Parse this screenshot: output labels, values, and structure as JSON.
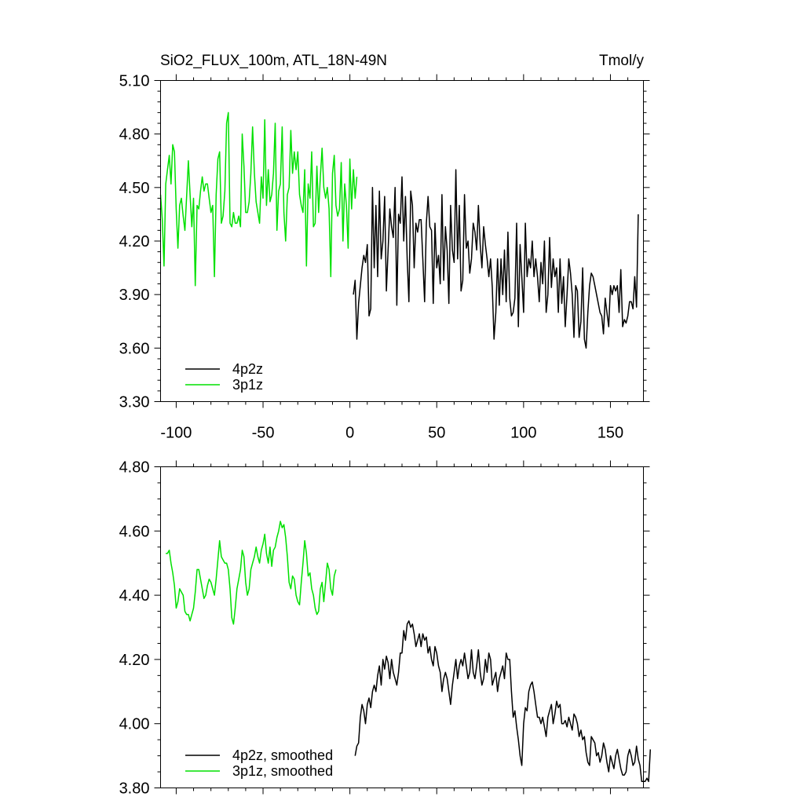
{
  "colors": {
    "run_4p2z": "#000000",
    "run_3p1z": "#00e000"
  },
  "chart_data": [
    {
      "type": "line",
      "title": "SiO2_FLUX_100m, ATL_18N-49N",
      "units": "Tmol/y",
      "xlim": [
        -109,
        169
      ],
      "ylim": [
        3.3,
        5.1
      ],
      "xticks": [
        -100,
        -50,
        0,
        50,
        100,
        150
      ],
      "xtick_labels": [
        "-100",
        "-50",
        "0",
        "50",
        "100",
        "150"
      ],
      "yticks": [
        3.3,
        3.6,
        3.9,
        4.2,
        4.5,
        4.8,
        5.1
      ],
      "ytick_labels": [
        "3.30",
        "3.60",
        "3.90",
        "4.20",
        "4.50",
        "4.80",
        "5.10"
      ],
      "legend_position": "lower-left",
      "series": [
        {
          "name": "4p2z",
          "color": "#000000",
          "x_start": 2,
          "x_step": 1,
          "values": [
            3.9,
            3.98,
            3.65,
            3.85,
            3.95,
            4.05,
            4.12,
            4.08,
            4.18,
            3.78,
            3.82,
            4.5,
            4.05,
            4.4,
            4.0,
            4.48,
            4.1,
            4.2,
            4.45,
            3.92,
            4.15,
            4.38,
            4.28,
            4.22,
            4.5,
            3.84,
            4.35,
            4.3,
            4.56,
            4.2,
            4.45,
            4.1,
            3.86,
            4.48,
            4.4,
            4.05,
            4.3,
            4.25,
            4.32,
            4.32,
            4.1,
            3.86,
            4.3,
            4.45,
            4.28,
            4.26,
            3.85,
            4.3,
            4.05,
            4.12,
            3.96,
            4.46,
            3.98,
            4.28,
            4.15,
            3.85,
            4.4,
            4.15,
            4.08,
            4.6,
            4.1,
            4.4,
            3.92,
            3.98,
            4.46,
            4.16,
            4.2,
            4.02,
            4.1,
            4.3,
            4.25,
            4.15,
            4.4,
            4.18,
            4.05,
            4.28,
            4.18,
            4.1,
            4.0,
            4.1,
            3.94,
            3.65,
            3.8,
            4.1,
            3.84,
            4.1,
            3.9,
            4.15,
            3.86,
            4.25,
            3.88,
            3.78,
            3.8,
            3.88,
            4.3,
            3.72,
            4.18,
            4.0,
            3.8,
            4.3,
            4.0,
            4.1,
            4.05,
            4.2,
            4.0,
            4.1,
            4.0,
            3.86,
            4.08,
            3.96,
            4.2,
            3.8,
            3.9,
            4.22,
            3.94,
            4.1,
            4.0,
            4.05,
            3.8,
            4.1,
            3.85,
            4.0,
            3.72,
            3.9,
            4.1,
            4.02,
            3.9,
            3.66,
            3.95,
            3.92,
            3.66,
            3.75,
            4.05,
            3.65,
            3.6,
            3.8,
            3.95,
            4.02,
            4.0,
            3.95,
            3.9,
            3.85,
            3.8,
            3.78,
            3.68,
            3.88,
            3.8,
            3.72,
            3.95,
            3.9,
            3.95,
            3.92,
            3.95,
            3.8,
            4.04,
            3.72,
            3.76,
            3.74,
            3.78,
            3.86,
            3.86,
            3.82,
            4.0,
            3.83,
            4.35
          ]
        },
        {
          "name": "3p1z",
          "color": "#00e000",
          "x_start": -109,
          "x_step": 1,
          "values": [
            4.46,
            4.32,
            4.06,
            4.52,
            4.6,
            4.68,
            4.52,
            4.74,
            4.7,
            4.38,
            4.16,
            4.4,
            4.44,
            4.34,
            4.26,
            4.45,
            4.65,
            4.46,
            4.28,
            4.44,
            3.95,
            4.4,
            4.38,
            4.48,
            4.56,
            4.48,
            4.52,
            4.52,
            4.44,
            4.36,
            4.4,
            4.0,
            4.46,
            4.66,
            4.7,
            4.3,
            4.34,
            4.48,
            4.86,
            4.92,
            4.3,
            4.28,
            4.36,
            4.3,
            4.3,
            4.34,
            4.28,
            4.8,
            4.62,
            4.36,
            4.36,
            4.42,
            4.58,
            4.84,
            4.58,
            4.42,
            4.36,
            4.3,
            4.56,
            4.44,
            4.88,
            4.4,
            4.6,
            4.42,
            4.46,
            4.58,
            4.86,
            4.26,
            4.48,
            4.52,
            4.84,
            4.36,
            4.2,
            4.46,
            4.5,
            4.82,
            4.58,
            4.7,
            4.6,
            4.7,
            4.46,
            4.4,
            4.36,
            4.6,
            4.06,
            4.52,
            4.44,
            4.7,
            4.28,
            4.3,
            4.62,
            4.36,
            4.56,
            4.72,
            4.5,
            4.44,
            4.5,
            4.38,
            4.0,
            4.58,
            4.68,
            4.4,
            4.34,
            4.38,
            4.64,
            4.2,
            4.52,
            4.4,
            4.16,
            4.66,
            4.38,
            4.6,
            4.44,
            4.56
          ]
        }
      ]
    },
    {
      "type": "line",
      "title": "",
      "xlim": [
        -109,
        169
      ],
      "ylim": [
        3.8,
        4.8
      ],
      "xticks": [
        -100,
        -50,
        0,
        50,
        100,
        150
      ],
      "yticks": [
        3.8,
        4.0,
        4.2,
        4.4,
        4.6,
        4.8
      ],
      "ytick_labels": [
        "3.80",
        "4.00",
        "4.20",
        "4.40",
        "4.60",
        "4.80"
      ],
      "legend_position": "lower-left",
      "series": [
        {
          "name": "4p2z, smoothed",
          "color": "#000000",
          "x_start": 3,
          "x_step": 1,
          "values": [
            3.9,
            3.93,
            3.94,
            4.02,
            4.06,
            4.04,
            4.0,
            4.06,
            4.08,
            4.05,
            4.1,
            4.12,
            4.1,
            4.15,
            4.18,
            4.12,
            4.2,
            4.17,
            4.21,
            4.19,
            4.14,
            4.2,
            4.16,
            4.14,
            4.12,
            4.16,
            4.22,
            4.22,
            4.29,
            4.26,
            4.31,
            4.32,
            4.3,
            4.31,
            4.28,
            4.24,
            4.26,
            4.28,
            4.24,
            4.28,
            4.26,
            4.27,
            4.22,
            4.24,
            4.2,
            4.18,
            4.24,
            4.22,
            4.18,
            4.16,
            4.1,
            4.14,
            4.16,
            4.14,
            4.1,
            4.06,
            4.12,
            4.16,
            4.2,
            4.14,
            4.18,
            4.2,
            4.18,
            4.22,
            4.18,
            4.14,
            4.16,
            4.23,
            4.16,
            4.14,
            4.18,
            4.23,
            4.16,
            4.12,
            4.14,
            4.2,
            4.16,
            4.22,
            4.2,
            4.12,
            4.14,
            4.16,
            4.1,
            4.14,
            4.16,
            4.18,
            4.14,
            4.22,
            4.2,
            4.2,
            4.1,
            4.02,
            4.04,
            3.99,
            3.95,
            3.9,
            3.87,
            4.0,
            4.05,
            4.04,
            4.1,
            4.12,
            4.13,
            4.1,
            4.06,
            4.02,
            4.02,
            4.0,
            4.02,
            3.99,
            3.96,
            4.02,
            4.04,
            4.06,
            4.0,
            4.03,
            4.07,
            4.05,
            4.06,
            4.0,
            4.0,
            4.01,
            3.99,
            4.02,
            4.0,
            3.98,
            4.03,
            4.02,
            4.0,
            3.96,
            3.98,
            3.95,
            3.96,
            3.91,
            3.88,
            3.87,
            3.96,
            3.95,
            3.94,
            3.9,
            3.91,
            3.88,
            3.9,
            3.94,
            3.92,
            3.88,
            3.85,
            3.9,
            3.88,
            3.86,
            3.9,
            3.92,
            3.89,
            3.86,
            3.84,
            3.84,
            3.85,
            3.9,
            3.92,
            3.9,
            3.87,
            3.88,
            3.93,
            3.89,
            3.87,
            3.82,
            3.82,
            3.82,
            3.83,
            3.82,
            3.92
          ]
        },
        {
          "name": "3p1z, smoothed",
          "color": "#00e000",
          "x_start": -106,
          "x_step": 1,
          "values": [
            4.53,
            4.53,
            4.54,
            4.5,
            4.47,
            4.43,
            4.36,
            4.38,
            4.42,
            4.41,
            4.4,
            4.35,
            4.34,
            4.34,
            4.32,
            4.34,
            4.36,
            4.41,
            4.48,
            4.48,
            4.45,
            4.42,
            4.39,
            4.4,
            4.43,
            4.45,
            4.44,
            4.42,
            4.4,
            4.45,
            4.51,
            4.57,
            4.52,
            4.51,
            4.5,
            4.5,
            4.48,
            4.42,
            4.33,
            4.31,
            4.36,
            4.42,
            4.45,
            4.48,
            4.54,
            4.52,
            4.44,
            4.4,
            4.42,
            4.48,
            4.5,
            4.52,
            4.55,
            4.52,
            4.5,
            4.54,
            4.56,
            4.59,
            4.53,
            4.5,
            4.55,
            4.49,
            4.54,
            4.55,
            4.58,
            4.6,
            4.63,
            4.61,
            4.62,
            4.58,
            4.52,
            4.44,
            4.42,
            4.46,
            4.45,
            4.4,
            4.38,
            4.37,
            4.44,
            4.5,
            4.57,
            4.53,
            4.46,
            4.47,
            4.42,
            4.4,
            4.36,
            4.34,
            4.35,
            4.42,
            4.44,
            4.38,
            4.44,
            4.5,
            4.48,
            4.42,
            4.4,
            4.46,
            4.48
          ]
        }
      ]
    }
  ]
}
